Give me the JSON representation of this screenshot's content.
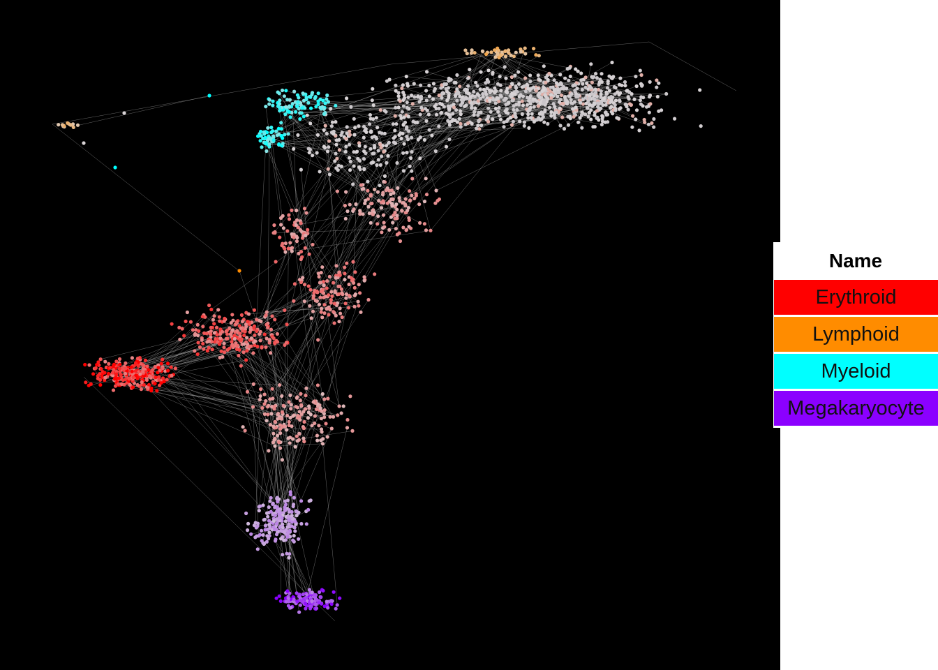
{
  "legend": {
    "title": "Name",
    "items": [
      {
        "label": "Erythroid",
        "color": "#ff0000"
      },
      {
        "label": "Lymphoid",
        "color": "#ff8c00"
      },
      {
        "label": "Myeloid",
        "color": "#00ffff"
      },
      {
        "label": "Megakaryocyte",
        "color": "#8b00ff"
      }
    ]
  },
  "colors": {
    "background": "#000000",
    "edge": "#bdbdbd",
    "neutral_node": "#d9d4d6"
  }
}
